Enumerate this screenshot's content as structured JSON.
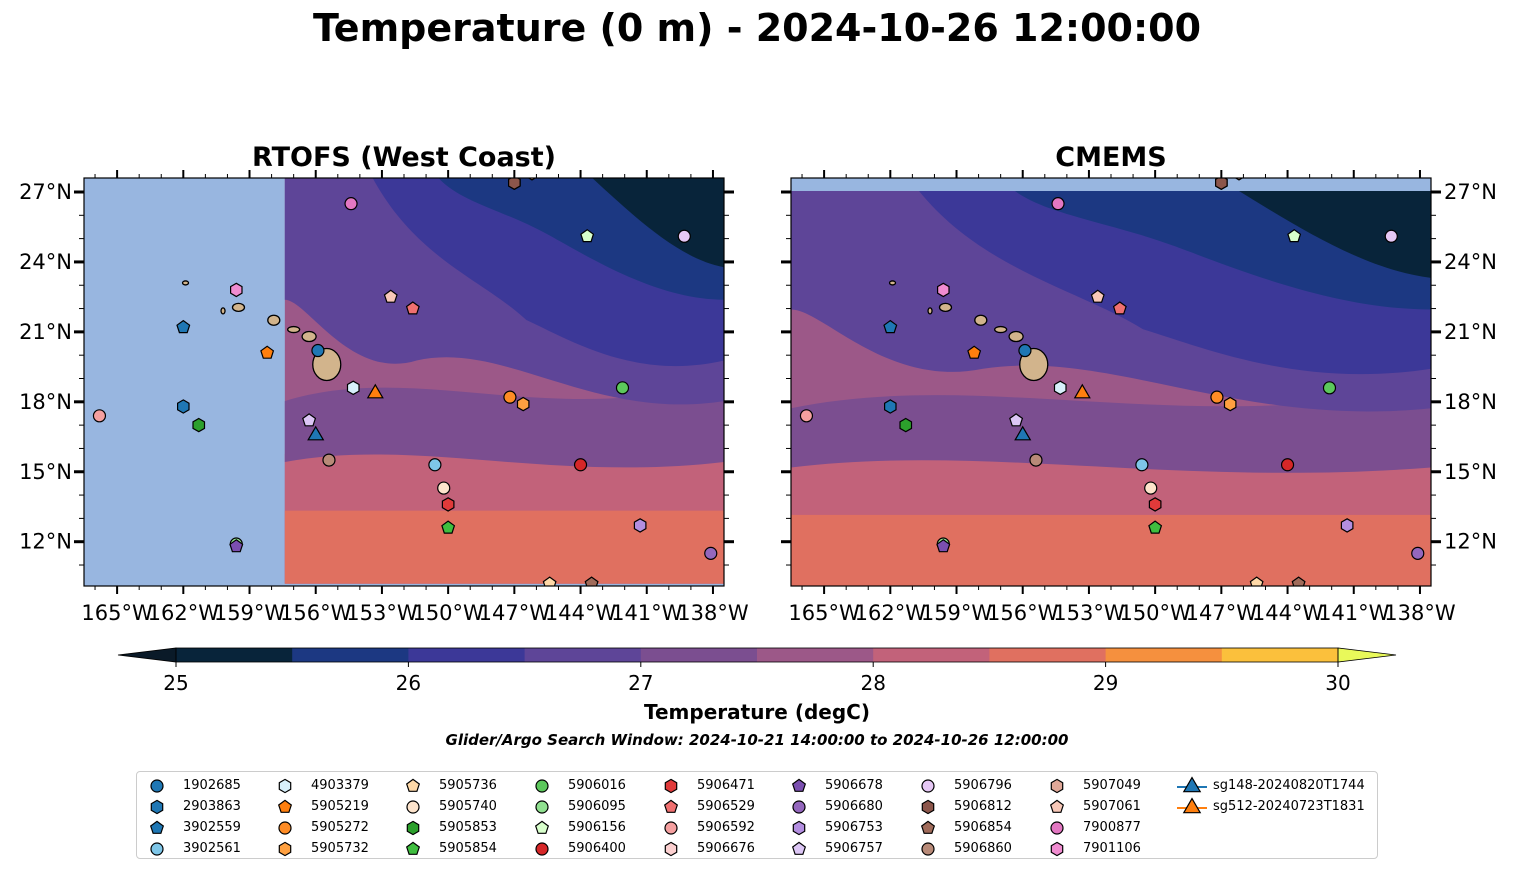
{
  "suptitle": "Temperature (0 m) - 2024-10-26 12:00:00",
  "panels": [
    {
      "title": "RTOFS (West Coast)"
    },
    {
      "title": "CMEMS"
    }
  ],
  "map": {
    "lon_range": [
      -166.5,
      -137.5
    ],
    "lat_range": [
      10.1,
      27.6
    ],
    "x_ticks": [
      "165°W",
      "162°W",
      "159°W",
      "156°W",
      "153°W",
      "150°W",
      "147°W",
      "144°W",
      "141°W",
      "138°W"
    ],
    "x_tick_values": [
      -165,
      -162,
      -159,
      -156,
      -153,
      -150,
      -147,
      -144,
      -141,
      -138
    ],
    "y_ticks": [
      "27°N",
      "24°N",
      "21°N",
      "18°N",
      "15°N",
      "12°N"
    ],
    "y_tick_values": [
      27,
      24,
      21,
      18,
      15,
      12
    ],
    "rtofs_domain_west_lon": -157.4,
    "rtofs_domain_south_lat": 10.2,
    "land_color": "#d2b48c",
    "ocean_background_color": "#98b6e0"
  },
  "colorbar": {
    "label": "Temperature (degC)",
    "ticks": [
      "25",
      "26",
      "27",
      "28",
      "29",
      "30"
    ],
    "colors": [
      "#08243a",
      "#1c3882",
      "#3c3898",
      "#5e4598",
      "#7b4e90",
      "#9c5888",
      "#c2627a",
      "#e07060",
      "#f5903e",
      "#fbc03c",
      "#e9f95a",
      "#0a1a28"
    ],
    "levels": [
      25,
      25.5,
      26,
      26.5,
      27,
      27.5,
      28,
      28.5,
      29,
      29.5,
      30
    ]
  },
  "search_window": "Glider/Argo Search Window: 2024-10-21 14:00:00 to 2024-10-26 12:00:00",
  "islands": [
    {
      "name": "Hawaii",
      "lon": -155.5,
      "lat": 19.6
    },
    {
      "name": "Maui",
      "lon": -156.3,
      "lat": 20.8
    },
    {
      "name": "Molokai",
      "lon": -157.0,
      "lat": 21.1
    },
    {
      "name": "Oahu",
      "lon": -157.9,
      "lat": 21.5
    },
    {
      "name": "Kauai",
      "lon": -159.5,
      "lat": 22.05
    },
    {
      "name": "Niihau",
      "lon": -160.2,
      "lat": 21.9
    },
    {
      "name": "Nihoa",
      "lon": -161.9,
      "lat": 23.1
    }
  ],
  "floats": [
    {
      "id": "1902685",
      "color": "#1f77b4",
      "marker": "circle",
      "lon": -155.9,
      "lat": 20.2
    },
    {
      "id": "2903863",
      "color": "#1f77b4",
      "marker": "hexagon",
      "lon": -162.0,
      "lat": 17.8
    },
    {
      "id": "3902559",
      "color": "#1f77b4",
      "marker": "pentagon",
      "lon": -162.0,
      "lat": 21.2
    },
    {
      "id": "3902561",
      "color": "#7ec6e8",
      "marker": "circle",
      "lon": -150.6,
      "lat": 15.3
    },
    {
      "id": "4903379",
      "color": "#d8f0fb",
      "marker": "hexagon",
      "lon": -154.3,
      "lat": 18.6
    },
    {
      "id": "5905219",
      "color": "#ff7f0e",
      "marker": "pentagon",
      "lon": -158.2,
      "lat": 20.1
    },
    {
      "id": "5905272",
      "color": "#ff8c25",
      "marker": "circle",
      "lon": -147.2,
      "lat": 18.2
    },
    {
      "id": "5905732",
      "color": "#ffa040",
      "marker": "hexagon",
      "lon": -146.6,
      "lat": 17.9
    },
    {
      "id": "5905736",
      "color": "#ffd9a8",
      "marker": "pentagon",
      "lon": -145.4,
      "lat": 10.2
    },
    {
      "id": "5905740",
      "color": "#fde4cc",
      "marker": "circle",
      "lon": -150.2,
      "lat": 14.3
    },
    {
      "id": "5905853",
      "color": "#2ca02c",
      "marker": "hexagon",
      "lon": -161.3,
      "lat": 17.0
    },
    {
      "id": "5905854",
      "color": "#3fbe3f",
      "marker": "pentagon",
      "lon": -150.0,
      "lat": 12.6
    },
    {
      "id": "5906016",
      "color": "#5cc85c",
      "marker": "circle",
      "lon": -142.1,
      "lat": 18.6
    },
    {
      "id": "5906095",
      "color": "#90e090",
      "marker": "circle",
      "lon": -159.6,
      "lat": 11.9
    },
    {
      "id": "5906156",
      "color": "#d8ffcc",
      "marker": "pentagon",
      "lon": -143.7,
      "lat": 25.1
    },
    {
      "id": "5906400",
      "color": "#d62728",
      "marker": "circle",
      "lon": -144.0,
      "lat": 15.3
    },
    {
      "id": "5906471",
      "color": "#e03a3a",
      "marker": "hexagon",
      "lon": -150.0,
      "lat": 13.6
    },
    {
      "id": "5906529",
      "color": "#f07070",
      "marker": "pentagon",
      "lon": -151.6,
      "lat": 22.0
    },
    {
      "id": "5906592",
      "color": "#f5a0a0",
      "marker": "circle",
      "lon": -165.8,
      "lat": 17.4
    },
    {
      "id": "5906676",
      "color": "#fcd0d0",
      "marker": "hexagon",
      "lon": -147.0,
      "lat": 27.4
    },
    {
      "id": "5906678",
      "color": "#7b4fb0",
      "marker": "pentagon",
      "lon": -159.6,
      "lat": 11.8
    },
    {
      "id": "5906680",
      "color": "#9467bd",
      "marker": "circle",
      "lon": -138.1,
      "lat": 11.5
    },
    {
      "id": "5906753",
      "color": "#b38ee0",
      "marker": "hexagon",
      "lon": -141.3,
      "lat": 12.7
    },
    {
      "id": "5906757",
      "color": "#dcc6f5",
      "marker": "pentagon",
      "lon": -156.3,
      "lat": 17.2
    },
    {
      "id": "5906796",
      "color": "#e6c8f5",
      "marker": "circle",
      "lon": -139.3,
      "lat": 25.1
    },
    {
      "id": "5906812",
      "color": "#8c564b",
      "marker": "hexagon",
      "lon": -147.0,
      "lat": 27.4
    },
    {
      "id": "5906854",
      "color": "#a06b5a",
      "marker": "pentagon",
      "lon": -143.5,
      "lat": 10.2
    },
    {
      "id": "5906860",
      "color": "#b88a78",
      "marker": "circle",
      "lon": -155.4,
      "lat": 15.5
    },
    {
      "id": "5907049",
      "color": "#e0a898",
      "marker": "hexagon",
      "lon": -146.2,
      "lat": 27.8
    },
    {
      "id": "5907061",
      "color": "#f8c8b8",
      "marker": "pentagon",
      "lon": -152.6,
      "lat": 22.5
    },
    {
      "id": "7900877",
      "color": "#e377c2",
      "marker": "circle",
      "lon": -154.4,
      "lat": 26.5
    },
    {
      "id": "7901106",
      "color": "#f08cd0",
      "marker": "hexagon",
      "lon": -159.6,
      "lat": 22.8
    },
    {
      "id": "sg148-20240820T1744",
      "color": "#1f77b4",
      "marker": "triangle",
      "lon": -156.0,
      "lat": 16.6
    },
    {
      "id": "sg512-20240723T1831",
      "color": "#ff7f0e",
      "marker": "triangle",
      "lon": -153.3,
      "lat": 18.4
    }
  ]
}
